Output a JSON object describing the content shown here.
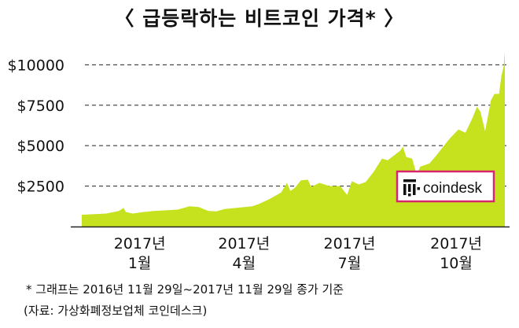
{
  "title": "〈 급등락하는 비트코인 가격* 〉",
  "footnote": "* 그래프는 2016년 11월 29일~2017년 11월 29일 종가 기준",
  "source": "(자료: 가상화폐정보업체 코인데스크)",
  "logo": {
    "text": "coindesk",
    "border_color": "#d8266e",
    "icon": "coindesk-logo-icon"
  },
  "colors": {
    "area_fill": "#c6e21f",
    "axis": "#222222",
    "grid": "#222222"
  },
  "chart_data": {
    "type": "area",
    "title": "〈 급등락하는 비트코인 가격* 〉",
    "xlabel": "",
    "ylabel": "",
    "ylim": [
      0,
      10600
    ],
    "grid": {
      "y_dashed": true,
      "x": false
    },
    "yticks": [
      {
        "value": 10000,
        "label": "$10000"
      },
      {
        "value": 7500,
        "label": "$7500"
      },
      {
        "value": 5000,
        "label": "$5000"
      },
      {
        "value": 2500,
        "label": "$2500"
      }
    ],
    "xticks": [
      {
        "x": "2017-01-01",
        "line1": "2017년",
        "line2": "1월"
      },
      {
        "x": "2017-04-01",
        "line1": "2017년",
        "line2": "4월"
      },
      {
        "x": "2017-07-01",
        "line1": "2017년",
        "line2": "7월"
      },
      {
        "x": "2017-10-01",
        "line1": "2017년",
        "line2": "10월"
      }
    ],
    "x_range": [
      "2016-11-29",
      "2017-11-29"
    ],
    "series": [
      {
        "points": [
          [
            "2016-11-29",
            730
          ],
          [
            "2016-12-10",
            770
          ],
          [
            "2016-12-20",
            800
          ],
          [
            "2016-12-31",
            960
          ],
          [
            "2017-01-04",
            1150
          ],
          [
            "2017-01-06",
            900
          ],
          [
            "2017-01-12",
            800
          ],
          [
            "2017-01-20",
            890
          ],
          [
            "2017-01-31",
            970
          ],
          [
            "2017-02-10",
            1000
          ],
          [
            "2017-02-20",
            1050
          ],
          [
            "2017-03-02",
            1250
          ],
          [
            "2017-03-10",
            1200
          ],
          [
            "2017-03-18",
            970
          ],
          [
            "2017-03-25",
            940
          ],
          [
            "2017-04-01",
            1080
          ],
          [
            "2017-04-15",
            1180
          ],
          [
            "2017-04-25",
            1250
          ],
          [
            "2017-05-01",
            1400
          ],
          [
            "2017-05-10",
            1700
          ],
          [
            "2017-05-20",
            2100
          ],
          [
            "2017-05-25",
            2700
          ],
          [
            "2017-05-28",
            2200
          ],
          [
            "2017-06-01",
            2400
          ],
          [
            "2017-06-06",
            2850
          ],
          [
            "2017-06-12",
            2900
          ],
          [
            "2017-06-15",
            2450
          ],
          [
            "2017-06-22",
            2700
          ],
          [
            "2017-07-01",
            2500
          ],
          [
            "2017-07-10",
            2500
          ],
          [
            "2017-07-16",
            1950
          ],
          [
            "2017-07-20",
            2800
          ],
          [
            "2017-07-26",
            2600
          ],
          [
            "2017-08-01",
            2750
          ],
          [
            "2017-08-08",
            3400
          ],
          [
            "2017-08-15",
            4200
          ],
          [
            "2017-08-20",
            4100
          ],
          [
            "2017-08-31",
            4700
          ],
          [
            "2017-09-02",
            4950
          ],
          [
            "2017-09-05",
            4300
          ],
          [
            "2017-09-10",
            4200
          ],
          [
            "2017-09-14",
            3200
          ],
          [
            "2017-09-17",
            3700
          ],
          [
            "2017-09-25",
            3900
          ],
          [
            "2017-10-01",
            4400
          ],
          [
            "2017-10-12",
            5400
          ],
          [
            "2017-10-20",
            6000
          ],
          [
            "2017-10-26",
            5800
          ],
          [
            "2017-11-01",
            6700
          ],
          [
            "2017-11-05",
            7400
          ],
          [
            "2017-11-08",
            7100
          ],
          [
            "2017-11-12",
            5900
          ],
          [
            "2017-11-17",
            7800
          ],
          [
            "2017-11-20",
            8200
          ],
          [
            "2017-11-24",
            8200
          ],
          [
            "2017-11-26",
            9300
          ],
          [
            "2017-11-28",
            9900
          ],
          [
            "2017-11-29",
            10800
          ]
        ]
      }
    ]
  }
}
